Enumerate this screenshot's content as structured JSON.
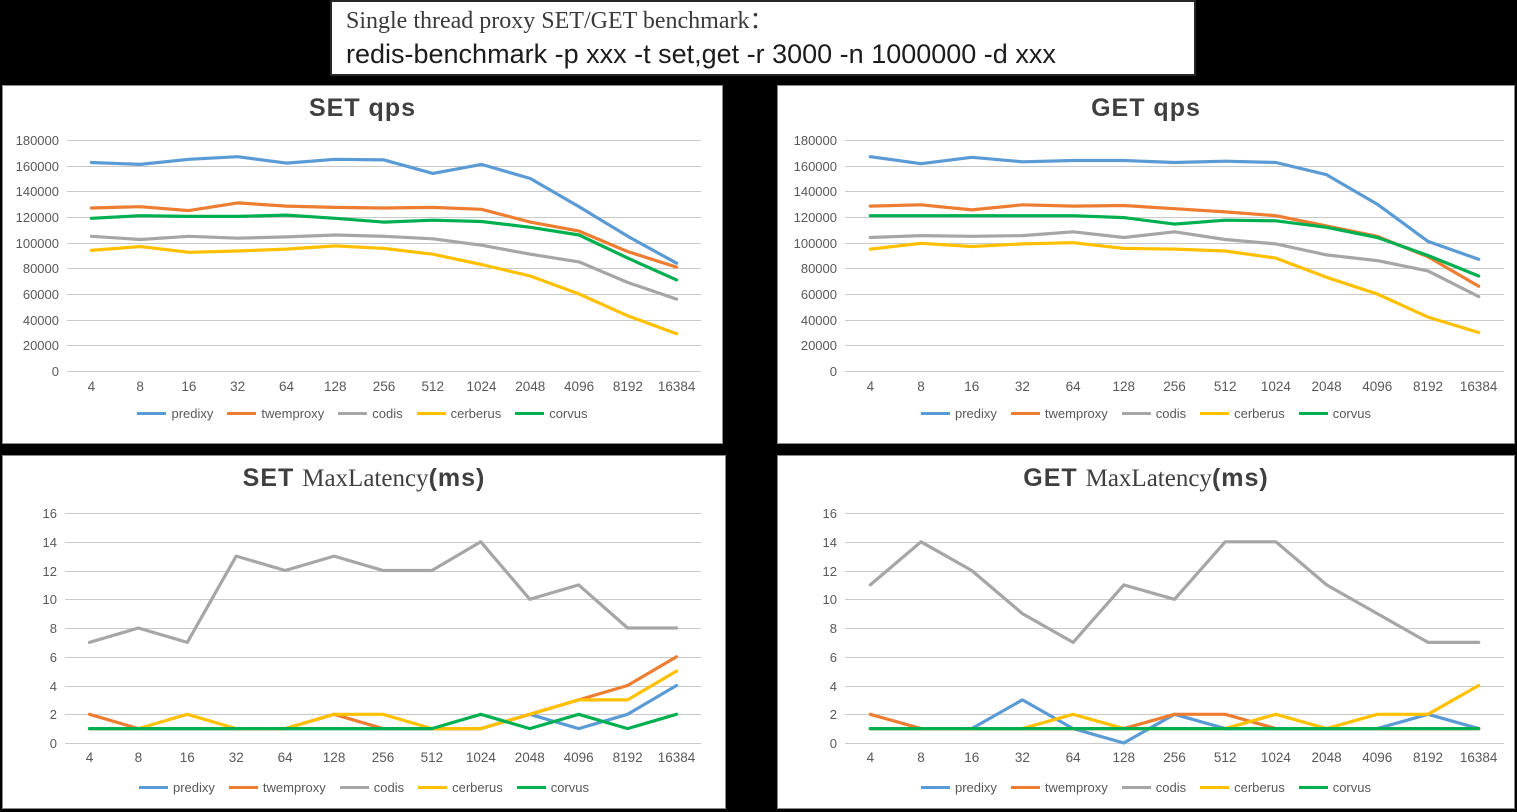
{
  "header": {
    "line1": "Single thread proxy SET/GET benchmark：",
    "line2": "redis-benchmark -p xxx -t set,get -r 3000 -n 1000000 -d xxx"
  },
  "palette": {
    "predixy": "#5B9BD5",
    "twemproxy": "#ED7D31",
    "codis": "#A6A6A6",
    "cerberus": "#FFC000",
    "corvus": "#00B050",
    "gridline": "#C9C9C9",
    "axis_text": "#595959",
    "title_text": "#3F3F3F"
  },
  "chart_data": [
    {
      "id": "set-qps",
      "type": "line",
      "title_parts": [
        {
          "text": "SET  qps",
          "serif": false
        }
      ],
      "xlabel": "",
      "ylabel": "",
      "ylim": [
        0,
        180000
      ],
      "ytick": 20000,
      "grid": true,
      "legend_position": "bottom",
      "categories": [
        "4",
        "8",
        "16",
        "32",
        "64",
        "128",
        "256",
        "512",
        "1024",
        "2048",
        "4096",
        "8192",
        "16384"
      ],
      "series": [
        {
          "name": "predixy",
          "values": [
            162500,
            161000,
            165000,
            167000,
            162000,
            165000,
            164500,
            154000,
            161000,
            150000,
            128000,
            105000,
            84000
          ]
        },
        {
          "name": "twemproxy",
          "values": [
            127000,
            128000,
            125000,
            131000,
            128500,
            127500,
            127000,
            127500,
            126000,
            116000,
            109000,
            93000,
            81000
          ]
        },
        {
          "name": "codis",
          "values": [
            105000,
            102500,
            105000,
            103500,
            104500,
            106000,
            105000,
            103000,
            98000,
            91000,
            85000,
            69000,
            56000
          ]
        },
        {
          "name": "cerberus",
          "values": [
            94000,
            97000,
            92500,
            93500,
            95000,
            97500,
            95500,
            91000,
            83000,
            74000,
            60000,
            43000,
            29000
          ]
        },
        {
          "name": "corvus",
          "values": [
            119000,
            121000,
            120500,
            120500,
            121500,
            119000,
            116000,
            117500,
            116500,
            112000,
            106000,
            88000,
            71000
          ]
        }
      ]
    },
    {
      "id": "get-qps",
      "type": "line",
      "title_parts": [
        {
          "text": "GET  qps",
          "serif": false
        }
      ],
      "xlabel": "",
      "ylabel": "",
      "ylim": [
        0,
        180000
      ],
      "ytick": 20000,
      "grid": true,
      "legend_position": "bottom",
      "categories": [
        "4",
        "8",
        "16",
        "32",
        "64",
        "128",
        "256",
        "512",
        "1024",
        "2048",
        "4096",
        "8192",
        "16384"
      ],
      "series": [
        {
          "name": "predixy",
          "values": [
            167000,
            161500,
            166500,
            163000,
            164000,
            164000,
            162500,
            163500,
            162500,
            153000,
            130000,
            101000,
            87000
          ]
        },
        {
          "name": "twemproxy",
          "values": [
            128500,
            129500,
            125500,
            129500,
            128500,
            129000,
            126500,
            124000,
            121000,
            113000,
            105000,
            89000,
            66000
          ]
        },
        {
          "name": "codis",
          "values": [
            104000,
            105500,
            105000,
            105500,
            108500,
            104000,
            108500,
            102500,
            99000,
            90500,
            86000,
            78000,
            58000
          ]
        },
        {
          "name": "cerberus",
          "values": [
            95000,
            99500,
            97000,
            99000,
            100000,
            95500,
            95000,
            93500,
            88000,
            73000,
            60000,
            42000,
            30000
          ]
        },
        {
          "name": "corvus",
          "values": [
            121000,
            121000,
            121000,
            121000,
            121000,
            119500,
            114500,
            117500,
            117000,
            112000,
            104000,
            90000,
            74000
          ]
        }
      ]
    },
    {
      "id": "set-maxlatency",
      "type": "line",
      "title_parts": [
        {
          "text": "SET ",
          "serif": false
        },
        {
          "text": "MaxLatency",
          "serif": true
        },
        {
          "text": "(ms)",
          "serif": false
        }
      ],
      "xlabel": "",
      "ylabel": "",
      "ylim": [
        0,
        16
      ],
      "ytick": 2,
      "grid": true,
      "legend_position": "bottom",
      "categories": [
        "4",
        "8",
        "16",
        "32",
        "64",
        "128",
        "256",
        "512",
        "1024",
        "2048",
        "4096",
        "8192",
        "16384"
      ],
      "series": [
        {
          "name": "predixy",
          "values": [
            1,
            1,
            1,
            1,
            1,
            1,
            1,
            1,
            1,
            2,
            1,
            2,
            4
          ]
        },
        {
          "name": "twemproxy",
          "values": [
            2,
            1,
            1,
            1,
            1,
            2,
            1,
            1,
            1,
            2,
            3,
            4,
            6
          ]
        },
        {
          "name": "codis",
          "values": [
            7,
            8,
            7,
            13,
            12,
            13,
            12,
            12,
            14,
            10,
            11,
            8,
            8
          ]
        },
        {
          "name": "cerberus",
          "values": [
            1,
            1,
            2,
            1,
            1,
            2,
            2,
            1,
            1,
            2,
            3,
            3,
            5
          ]
        },
        {
          "name": "corvus",
          "values": [
            1,
            1,
            1,
            1,
            1,
            1,
            1,
            1,
            2,
            1,
            2,
            1,
            2
          ]
        }
      ]
    },
    {
      "id": "get-maxlatency",
      "type": "line",
      "title_parts": [
        {
          "text": "GET ",
          "serif": false
        },
        {
          "text": "MaxLatency",
          "serif": true
        },
        {
          "text": "(ms)",
          "serif": false
        }
      ],
      "xlabel": "",
      "ylabel": "",
      "ylim": [
        0,
        16
      ],
      "ytick": 2,
      "grid": true,
      "legend_position": "bottom",
      "categories": [
        "4",
        "8",
        "16",
        "32",
        "64",
        "128",
        "256",
        "512",
        "1024",
        "2048",
        "4096",
        "8192",
        "16384"
      ],
      "series": [
        {
          "name": "predixy",
          "values": [
            1,
            1,
            1,
            3,
            1,
            0,
            2,
            1,
            1,
            1,
            1,
            2,
            1
          ]
        },
        {
          "name": "twemproxy",
          "values": [
            2,
            1,
            1,
            1,
            1,
            1,
            2,
            2,
            1,
            1,
            1,
            1,
            1
          ]
        },
        {
          "name": "codis",
          "values": [
            11,
            14,
            12,
            9,
            7,
            11,
            10,
            14,
            14,
            11,
            9,
            7,
            7
          ]
        },
        {
          "name": "cerberus",
          "values": [
            1,
            1,
            1,
            1,
            2,
            1,
            1,
            1,
            2,
            1,
            2,
            2,
            4
          ]
        },
        {
          "name": "corvus",
          "values": [
            1,
            1,
            1,
            1,
            1,
            1,
            1,
            1,
            1,
            1,
            1,
            1,
            1
          ]
        }
      ]
    }
  ]
}
